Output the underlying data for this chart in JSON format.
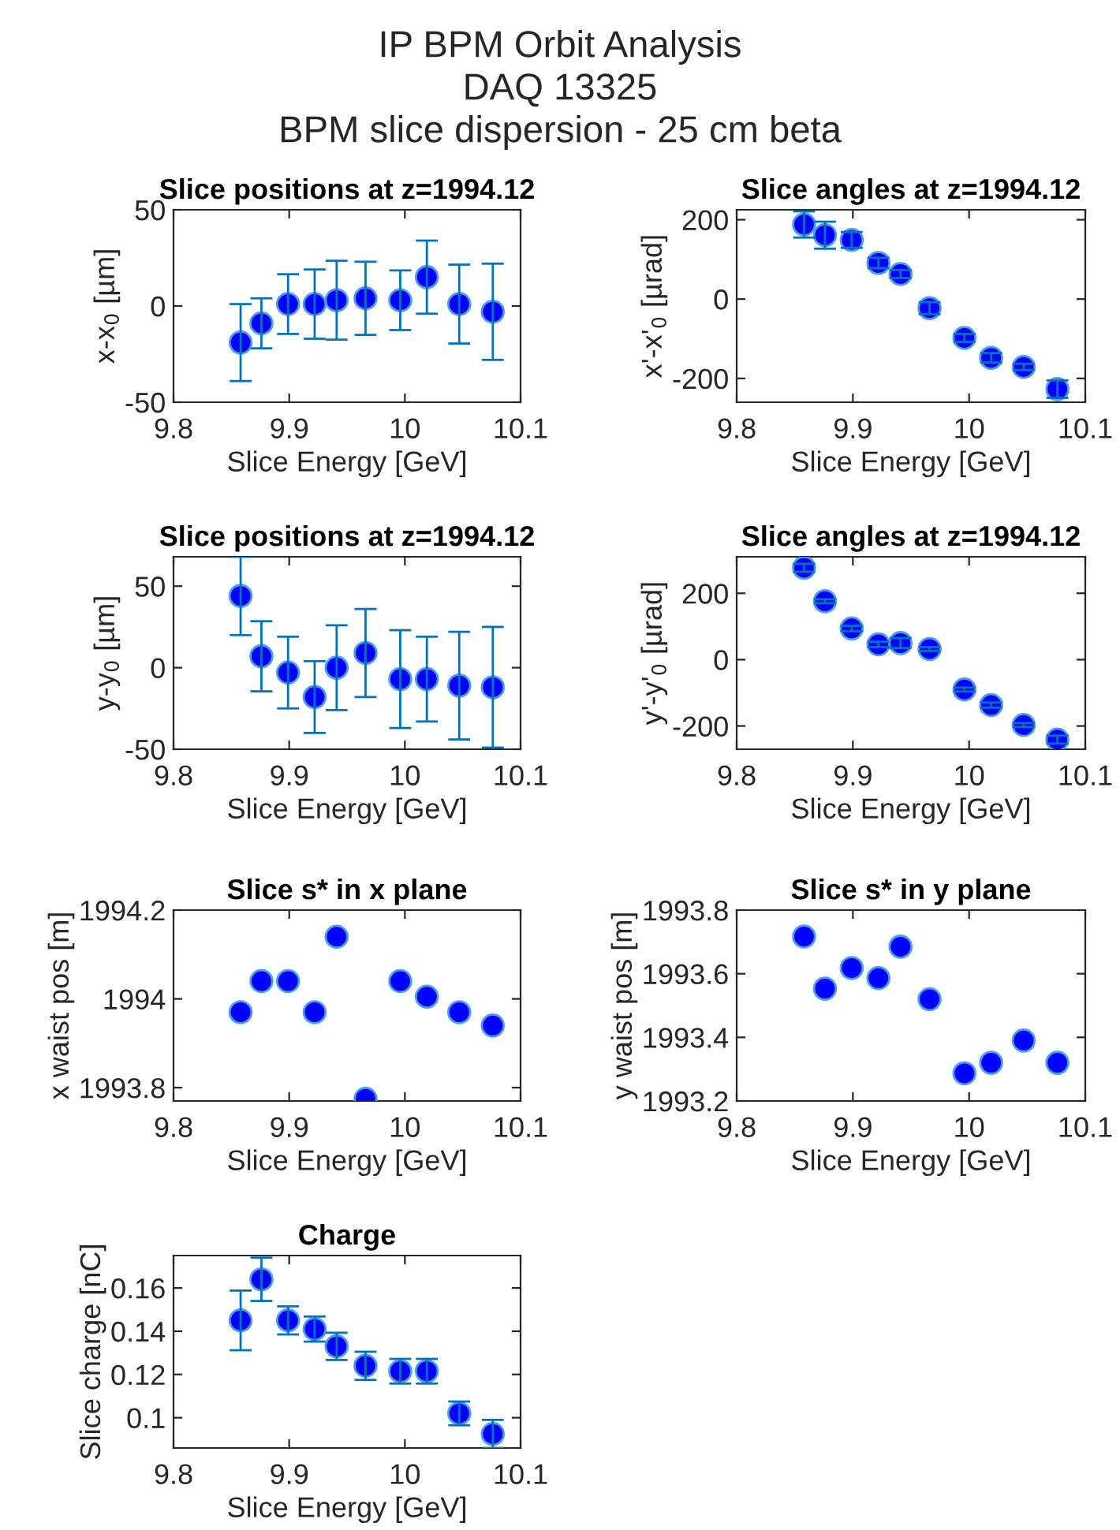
{
  "chart_data": [
    {
      "type": "scatter",
      "title": "Slice positions at z=1994.12",
      "xlabel": "Slice Energy [GeV]",
      "ylabel": "x-x$_{0}$ [µm]",
      "annotations": [
        "IP BPM Orbit Analysis",
        "DAQ 13325",
        "BPM slice dispersion - 25 cm beta"
      ],
      "x": [
        9.858,
        9.876,
        9.899,
        9.922,
        9.941,
        9.966,
        9.996,
        10.019,
        10.047,
        10.076
      ],
      "xlim": [
        9.8,
        10.1
      ],
      "xticks": [
        9.8,
        9.9,
        10,
        10.1
      ],
      "ylim": [
        -50,
        50
      ],
      "yticks": [
        -50,
        0,
        50
      ],
      "marker": "circle",
      "grid": false,
      "legend": false,
      "series": [
        {
          "color": "#0000ff",
          "values": [
            -19,
            -9,
            1,
            1,
            3,
            4,
            3,
            15,
            1,
            -3
          ],
          "errors": [
            20,
            13,
            15.5,
            18,
            20.5,
            19,
            15.5,
            19,
            20.5,
            25
          ]
        }
      ]
    },
    {
      "type": "scatter",
      "title": "Slice angles at z=1994.12",
      "xlabel": "Slice Energy [GeV]",
      "ylabel": "x'-x'$_{0}$ [µrad]",
      "x": [
        9.858,
        9.876,
        9.899,
        9.922,
        9.941,
        9.966,
        9.996,
        10.019,
        10.047,
        10.076
      ],
      "xlim": [
        9.8,
        10.1
      ],
      "xticks": [
        9.8,
        9.9,
        10,
        10.1
      ],
      "ylim": [
        -260,
        225
      ],
      "yticks": [
        -200,
        0,
        200
      ],
      "marker": "circle",
      "grid": false,
      "legend": false,
      "series": [
        {
          "color": "#0000ff",
          "values": [
            188,
            161,
            149,
            91,
            63,
            -23,
            -98,
            -148,
            -171,
            -227
          ],
          "errors": [
            33,
            34,
            20,
            13,
            10,
            15,
            10,
            12,
            8,
            22
          ]
        }
      ]
    },
    {
      "type": "scatter",
      "title": "Slice positions at z=1994.12",
      "xlabel": "Slice Energy [GeV]",
      "ylabel": "y-y$_{0}$ [µm]",
      "x": [
        9.858,
        9.876,
        9.899,
        9.922,
        9.941,
        9.966,
        9.996,
        10.019,
        10.047,
        10.076
      ],
      "xlim": [
        9.8,
        10.1
      ],
      "xticks": [
        9.8,
        9.9,
        10,
        10.1
      ],
      "ylim": [
        -50,
        68
      ],
      "yticks": [
        -50,
        0,
        50
      ],
      "marker": "circle",
      "grid": false,
      "legend": false,
      "series": [
        {
          "color": "#0000ff",
          "values": [
            44,
            7,
            -3,
            -18,
            0,
            9,
            -7,
            -7,
            -11,
            -12
          ],
          "errors": [
            24,
            21.5,
            22,
            22,
            26,
            27,
            30,
            26,
            33,
            37
          ]
        }
      ]
    },
    {
      "type": "scatter",
      "title": "Slice angles at z=1994.12",
      "xlabel": "Slice Energy [GeV]",
      "ylabel": "y'-y'$_{0}$ [µrad]",
      "x": [
        9.858,
        9.876,
        9.899,
        9.922,
        9.941,
        9.966,
        9.996,
        10.019,
        10.047,
        10.076
      ],
      "xlim": [
        9.8,
        10.1
      ],
      "xticks": [
        9.8,
        9.9,
        10,
        10.1
      ],
      "ylim": [
        -270,
        310
      ],
      "yticks": [
        -200,
        0,
        200
      ],
      "marker": "circle",
      "grid": false,
      "legend": false,
      "series": [
        {
          "color": "#0000ff",
          "values": [
            277,
            176,
            94,
            46,
            50,
            32,
            -90,
            -137,
            -197,
            -241
          ],
          "errors": [
            12,
            6,
            8,
            8,
            15,
            6,
            6,
            8,
            6,
            12
          ]
        }
      ]
    },
    {
      "type": "scatter",
      "title": "Slice s* in x plane",
      "xlabel": "Slice Energy [GeV]",
      "ylabel": "x waist pos [m]",
      "x": [
        9.858,
        9.876,
        9.899,
        9.922,
        9.941,
        9.966,
        9.996,
        10.019,
        10.047,
        10.076
      ],
      "xlim": [
        9.8,
        10.1
      ],
      "xticks": [
        9.8,
        9.9,
        10,
        10.1
      ],
      "ylim": [
        1993.77,
        1994.2
      ],
      "yticks": [
        1993.8,
        1994,
        1994.2
      ],
      "marker": "circle",
      "grid": false,
      "legend": false,
      "series": [
        {
          "color": "#0000ff",
          "values": [
            1993.97,
            1994.04,
            1994.04,
            1993.97,
            1994.14,
            1993.775,
            1994.04,
            1994.005,
            1993.97,
            1993.94
          ]
        }
      ]
    },
    {
      "type": "scatter",
      "title": "Slice s* in y plane",
      "xlabel": "Slice Energy [GeV]",
      "ylabel": "y waist pos [m]",
      "x": [
        9.858,
        9.876,
        9.899,
        9.922,
        9.941,
        9.966,
        9.996,
        10.019,
        10.047,
        10.076
      ],
      "xlim": [
        9.8,
        10.1
      ],
      "xticks": [
        9.8,
        9.9,
        10,
        10.1
      ],
      "ylim": [
        1993.2,
        1993.8
      ],
      "yticks": [
        1993.2,
        1993.4,
        1993.6,
        1993.8
      ],
      "marker": "circle",
      "grid": false,
      "legend": false,
      "series": [
        {
          "color": "#0000ff",
          "values": [
            1993.717,
            1993.553,
            1993.618,
            1993.586,
            1993.685,
            1993.52,
            1993.287,
            1993.32,
            1993.39,
            1993.32
          ]
        }
      ]
    },
    {
      "type": "scatter",
      "title": "Charge",
      "xlabel": "Slice Energy [GeV]",
      "ylabel": "Slice charge [nC]",
      "x": [
        9.858,
        9.876,
        9.899,
        9.922,
        9.941,
        9.966,
        9.996,
        10.019,
        10.047,
        10.076
      ],
      "xlim": [
        9.8,
        10.1
      ],
      "xticks": [
        9.8,
        9.9,
        10,
        10.1
      ],
      "ylim": [
        0.086,
        0.175
      ],
      "yticks": [
        0.1,
        0.12,
        0.14,
        0.16
      ],
      "marker": "circle",
      "grid": false,
      "legend": false,
      "series": [
        {
          "color": "#0000ff",
          "values": [
            0.145,
            0.164,
            0.145,
            0.141,
            0.133,
            0.124,
            0.1215,
            0.1215,
            0.102,
            0.0925
          ],
          "errors": [
            0.0138,
            0.01,
            0.0065,
            0.0058,
            0.0063,
            0.0065,
            0.0057,
            0.0057,
            0.0055,
            0.0065
          ]
        }
      ]
    }
  ]
}
